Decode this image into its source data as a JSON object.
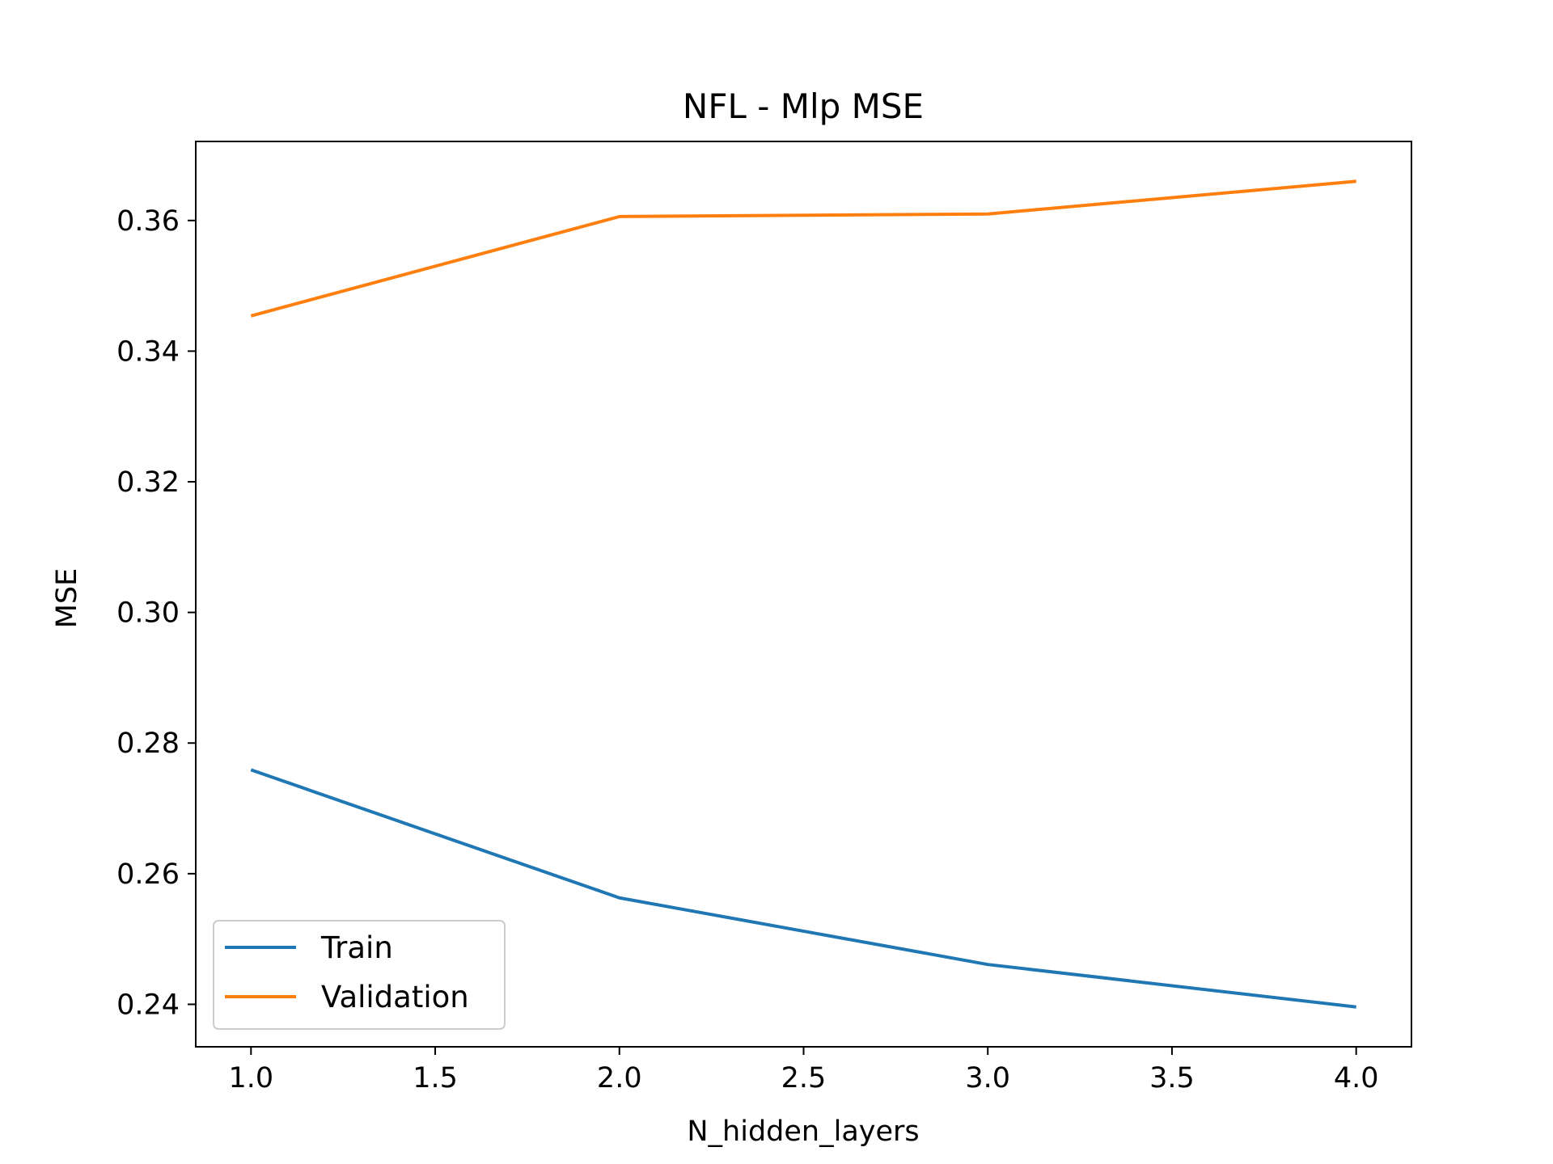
{
  "chart_data": {
    "type": "line",
    "title": "NFL - Mlp MSE",
    "xlabel": "N_hidden_layers",
    "ylabel": "MSE",
    "x": [
      1.0,
      2.0,
      3.0,
      4.0
    ],
    "series": [
      {
        "name": "Train",
        "color": "#1f77b4",
        "values": [
          0.2759,
          0.2563,
          0.2461,
          0.2396
        ]
      },
      {
        "name": "Validation",
        "color": "#ff7f0e",
        "values": [
          0.3454,
          0.3606,
          0.361,
          0.366
        ]
      }
    ],
    "xlim": [
      0.85,
      4.15
    ],
    "ylim": [
      0.2335,
      0.3721
    ],
    "xticks": [
      1.0,
      1.5,
      2.0,
      2.5,
      3.0,
      3.5,
      4.0
    ],
    "xtick_labels": [
      "1.0",
      "1.5",
      "2.0",
      "2.5",
      "3.0",
      "3.5",
      "4.0"
    ],
    "yticks": [
      0.24,
      0.26,
      0.28,
      0.3,
      0.32,
      0.34,
      0.36
    ],
    "ytick_labels": [
      "0.24",
      "0.26",
      "0.28",
      "0.30",
      "0.32",
      "0.34",
      "0.36"
    ],
    "grid": false,
    "legend_position": "lower-left"
  }
}
